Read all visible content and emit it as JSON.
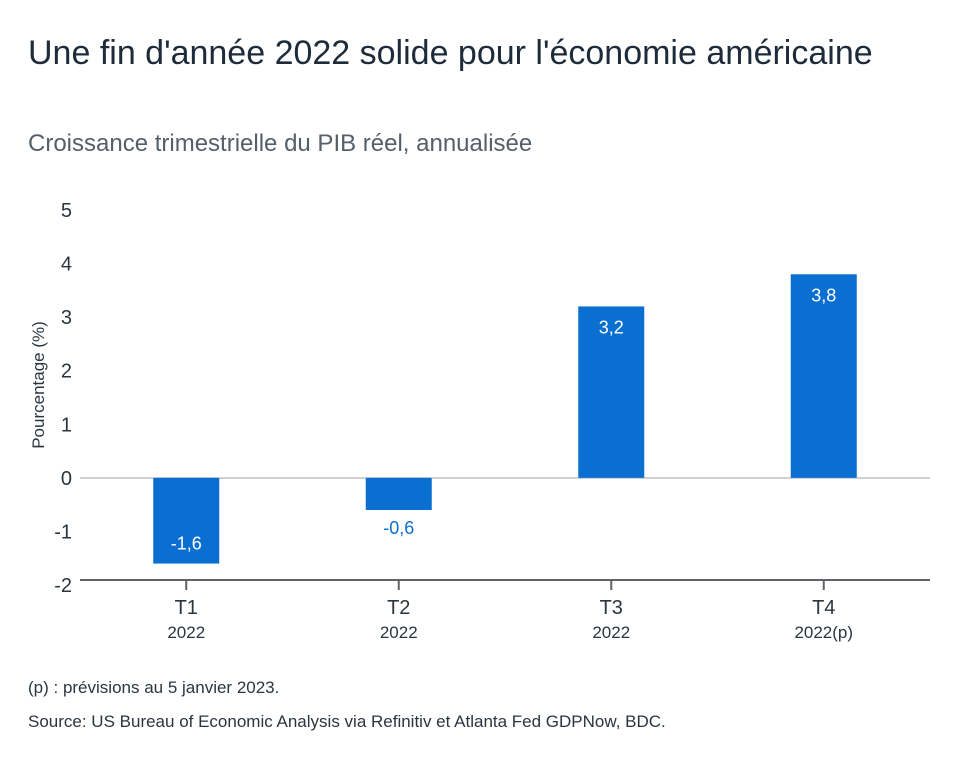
{
  "title": "Une fin d'année 2022 solide pour l'économie américaine",
  "subtitle": "Croissance trimestrielle du PIB réel, annualisée",
  "note": "(p) : prévisions au 5 janvier 2023.",
  "source": "Source: US Bureau of Economic Analysis via Refinitiv et Atlanta Fed GDPNow, BDC.",
  "colors": {
    "bar": "#0a6fd1",
    "label_inside": "#ffffff",
    "label_outside": "#0a6fd1",
    "axis": "#5f6368",
    "grid": "#bfc3c7"
  },
  "chart_data": {
    "type": "bar",
    "categories": [
      "T1",
      "T2",
      "T3",
      "T4"
    ],
    "sub_categories": [
      "2022",
      "2022",
      "2022",
      "2022(p)"
    ],
    "values": [
      -1.6,
      -0.6,
      3.2,
      3.8
    ],
    "data_labels": [
      "-1,6",
      "-0,6",
      "3,2",
      "3,8"
    ],
    "ylabel": "Pourcentage (%)",
    "ylim": [
      -2,
      5
    ],
    "yticks": [
      5,
      4,
      3,
      2,
      1,
      0,
      -1,
      -2
    ],
    "ytick_labels": [
      "5",
      "4",
      "3",
      "2",
      "1",
      "0",
      "-1",
      "-2"
    ],
    "grid": false
  }
}
